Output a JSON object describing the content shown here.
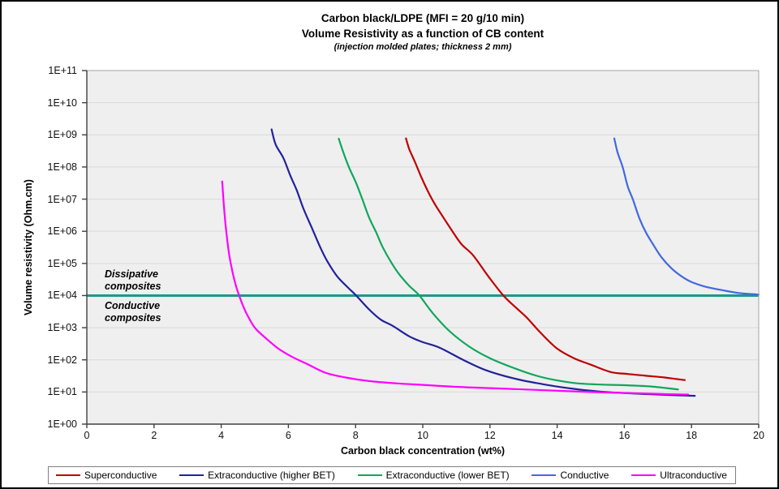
{
  "title": {
    "line1": "Carbon black/LDPE (MFI = 20 g/10 min)",
    "line2": "Volume Resistivity as a function of CB content",
    "line3": "(injection molded plates; thickness 2 mm)"
  },
  "chart_data": {
    "type": "line",
    "xlabel": "Carbon black concentration (wt%)",
    "ylabel": "Volume resistivity (Ohm.cm)",
    "x_axis": {
      "min": 0,
      "max": 20,
      "tick_step": 2,
      "ticks": [
        0,
        2,
        4,
        6,
        8,
        10,
        12,
        14,
        16,
        18,
        20
      ]
    },
    "y_axis": {
      "scale": "log10",
      "min_exp": 0,
      "max_exp": 11,
      "tick_labels": [
        "1E+00",
        "1E+01",
        "1E+02",
        "1E+03",
        "1E+04",
        "1E+05",
        "1E+06",
        "1E+07",
        "1E+08",
        "1E+09",
        "1E+10",
        "1E+11"
      ]
    },
    "grid": "horizontal-only",
    "legend_position": "bottom",
    "plot_bg": "#efefef",
    "grid_color": "#d9d9d9",
    "axis_color": "#404040",
    "border_color": "#a6a6a6",
    "threshold": {
      "value_exp": 4,
      "value_label": "1E+04 Ohm.cm",
      "color": "#1E978D",
      "label_above": "Dissipative composites",
      "label_below": "Conductive composites"
    },
    "series": [
      {
        "name": "Superconductive",
        "color": "#C00000",
        "points_x_wtpct_y_log10ohmcm": [
          [
            9.5,
            8.89
          ],
          [
            9.6,
            8.55
          ],
          [
            9.75,
            8.2
          ],
          [
            9.95,
            7.7
          ],
          [
            10.15,
            7.25
          ],
          [
            10.35,
            6.86
          ],
          [
            10.6,
            6.45
          ],
          [
            10.85,
            6.05
          ],
          [
            11.15,
            5.6
          ],
          [
            11.5,
            5.25
          ],
          [
            11.95,
            4.6
          ],
          [
            12.4,
            4.0
          ],
          [
            12.8,
            3.6
          ],
          [
            13.1,
            3.31
          ],
          [
            13.5,
            2.85
          ],
          [
            14.0,
            2.35
          ],
          [
            14.5,
            2.05
          ],
          [
            15.0,
            1.85
          ],
          [
            15.6,
            1.62
          ],
          [
            16.1,
            1.56
          ],
          [
            16.6,
            1.51
          ],
          [
            17.2,
            1.45
          ],
          [
            17.8,
            1.37
          ]
        ]
      },
      {
        "name": "Extraconductive (higher BET)",
        "color": "#22229B",
        "points_x_wtpct_y_log10ohmcm": [
          [
            5.5,
            9.17
          ],
          [
            5.62,
            8.7
          ],
          [
            5.85,
            8.28
          ],
          [
            6.05,
            7.75
          ],
          [
            6.25,
            7.27
          ],
          [
            6.45,
            6.7
          ],
          [
            6.7,
            6.1
          ],
          [
            6.95,
            5.5
          ],
          [
            7.15,
            5.08
          ],
          [
            7.45,
            4.6
          ],
          [
            7.78,
            4.24
          ],
          [
            8.02,
            4.0
          ],
          [
            8.4,
            3.57
          ],
          [
            8.75,
            3.25
          ],
          [
            9.1,
            3.06
          ],
          [
            9.6,
            2.73
          ],
          [
            10.0,
            2.55
          ],
          [
            10.5,
            2.38
          ],
          [
            11.2,
            2.0
          ],
          [
            11.9,
            1.67
          ],
          [
            12.8,
            1.4
          ],
          [
            13.6,
            1.24
          ],
          [
            14.4,
            1.11
          ],
          [
            15.2,
            1.02
          ],
          [
            16.1,
            0.96
          ],
          [
            17.0,
            0.92
          ],
          [
            18.1,
            0.88
          ]
        ]
      },
      {
        "name": "Extraconductive (lower BET)",
        "color": "#0EA75C",
        "points_x_wtpct_y_log10ohmcm": [
          [
            7.5,
            8.88
          ],
          [
            7.62,
            8.5
          ],
          [
            7.8,
            8.0
          ],
          [
            8.0,
            7.54
          ],
          [
            8.2,
            7.0
          ],
          [
            8.4,
            6.43
          ],
          [
            8.62,
            5.95
          ],
          [
            8.8,
            5.52
          ],
          [
            9.05,
            5.05
          ],
          [
            9.3,
            4.66
          ],
          [
            9.6,
            4.3
          ],
          [
            9.9,
            4.0
          ],
          [
            10.3,
            3.45
          ],
          [
            10.8,
            2.89
          ],
          [
            11.4,
            2.4
          ],
          [
            12.0,
            2.05
          ],
          [
            12.7,
            1.75
          ],
          [
            13.4,
            1.5
          ],
          [
            14.0,
            1.36
          ],
          [
            14.6,
            1.27
          ],
          [
            15.3,
            1.23
          ],
          [
            16.0,
            1.21
          ],
          [
            16.8,
            1.17
          ],
          [
            17.6,
            1.08
          ]
        ]
      },
      {
        "name": "Conductive",
        "color": "#4169E1",
        "points_x_wtpct_y_log10ohmcm": [
          [
            15.7,
            8.89
          ],
          [
            15.8,
            8.45
          ],
          [
            15.95,
            8.0
          ],
          [
            16.1,
            7.4
          ],
          [
            16.25,
            7.0
          ],
          [
            16.45,
            6.4
          ],
          [
            16.65,
            5.95
          ],
          [
            16.85,
            5.6
          ],
          [
            17.1,
            5.2
          ],
          [
            17.4,
            4.85
          ],
          [
            17.7,
            4.6
          ],
          [
            18.0,
            4.42
          ],
          [
            18.4,
            4.28
          ],
          [
            18.9,
            4.17
          ],
          [
            19.4,
            4.08
          ],
          [
            20.0,
            4.03
          ]
        ]
      },
      {
        "name": "Ultraconductive",
        "color": "#FF00FF",
        "points_x_wtpct_y_log10ohmcm": [
          [
            4.03,
            7.55
          ],
          [
            4.08,
            6.8
          ],
          [
            4.15,
            6.0
          ],
          [
            4.25,
            5.2
          ],
          [
            4.4,
            4.45
          ],
          [
            4.55,
            3.95
          ],
          [
            4.75,
            3.45
          ],
          [
            5.0,
            3.0
          ],
          [
            5.3,
            2.7
          ],
          [
            5.7,
            2.35
          ],
          [
            6.1,
            2.1
          ],
          [
            6.6,
            1.85
          ],
          [
            7.1,
            1.6
          ],
          [
            7.7,
            1.45
          ],
          [
            8.4,
            1.34
          ],
          [
            9.2,
            1.27
          ],
          [
            10.0,
            1.22
          ],
          [
            11.0,
            1.16
          ],
          [
            12.0,
            1.12
          ],
          [
            13.0,
            1.08
          ],
          [
            14.0,
            1.04
          ],
          [
            15.0,
            1.0
          ],
          [
            16.0,
            0.97
          ],
          [
            17.0,
            0.94
          ],
          [
            17.9,
            0.92
          ]
        ]
      }
    ]
  },
  "legend": {
    "entries": [
      {
        "label": "Superconductive",
        "color": "#C00000"
      },
      {
        "label": "Extraconductive (higher BET)",
        "color": "#22229B"
      },
      {
        "label": "Extraconductive (lower BET)",
        "color": "#0EA75C"
      },
      {
        "label": "Conductive",
        "color": "#4169E1"
      },
      {
        "label": "Ultraconductive",
        "color": "#FF00FF"
      }
    ]
  }
}
